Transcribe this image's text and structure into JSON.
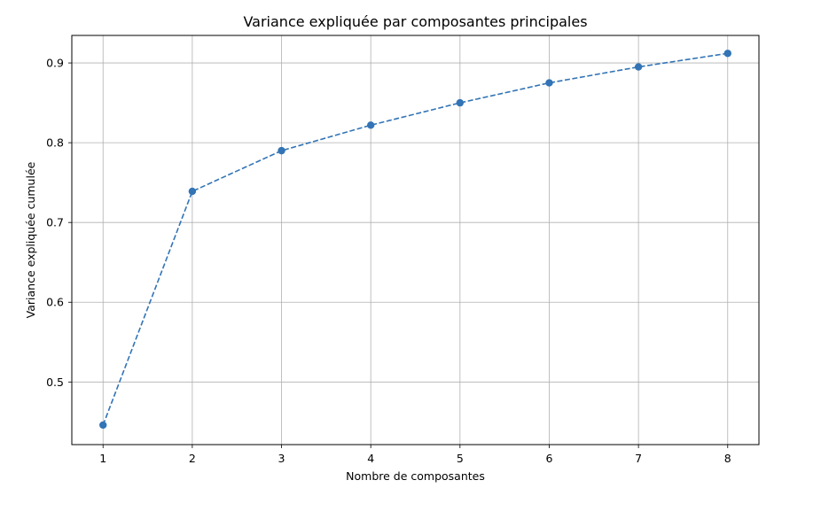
{
  "chart_data": {
    "type": "line",
    "title": "Variance expliquée par composantes principales",
    "xlabel": "Nombre de composantes",
    "ylabel": "Variance expliquée cumulée",
    "x": [
      1,
      2,
      3,
      4,
      5,
      6,
      7,
      8
    ],
    "series": [
      {
        "values": [
          0.446,
          0.739,
          0.79,
          0.822,
          0.85,
          0.875,
          0.895,
          0.912
        ],
        "color": "#3274b5",
        "line_style": "dashed",
        "marker": "circle"
      }
    ],
    "xlim": [
      0.65,
      8.35
    ],
    "ylim": [
      0.4215,
      0.9345
    ],
    "x_ticks": [
      "1",
      "2",
      "3",
      "4",
      "5",
      "6",
      "7",
      "8"
    ],
    "y_ticks": [
      "0.5",
      "0.6",
      "0.7",
      "0.8",
      "0.9"
    ],
    "grid": true,
    "grid_color": "#b0b0b0",
    "axes_color": "#000000"
  }
}
